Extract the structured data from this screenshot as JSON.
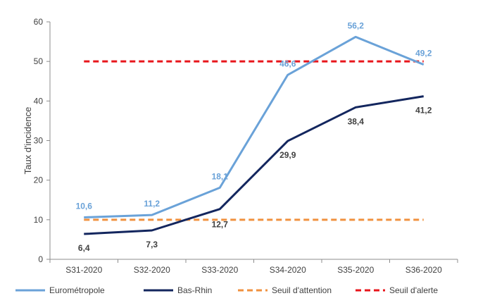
{
  "chart_data": {
    "type": "line",
    "title": "",
    "xlabel": "",
    "ylabel": "Taux d'incidence",
    "ylim": [
      0,
      60
    ],
    "yticks": [
      "0",
      "10",
      "20",
      "30",
      "40",
      "50",
      "60"
    ],
    "categories": [
      "S31-2020",
      "S32-2020",
      "S33-2020",
      "S34-2020",
      "S35-2020",
      "S36-2020"
    ],
    "grid": false,
    "legend_position": "bottom",
    "series": [
      {
        "name": "Eurométropole",
        "color": "#6aa2d8",
        "style": "solid",
        "values": [
          10.6,
          11.2,
          18.1,
          46.6,
          56.2,
          49.2
        ],
        "labels": [
          "10,6",
          "11,2",
          "18,1",
          "46,6",
          "56,2",
          "49,2"
        ]
      },
      {
        "name": "Bas-Rhin",
        "color": "#13265e",
        "style": "solid",
        "values": [
          6.4,
          7.3,
          12.7,
          29.9,
          38.4,
          41.2
        ],
        "labels": [
          "6,4",
          "7,3",
          "12,7",
          "29,9",
          "38,4",
          "41,2"
        ]
      },
      {
        "name": "Seuil d'attention",
        "color": "#f0913f",
        "style": "dashed",
        "values": [
          10,
          10,
          10,
          10,
          10,
          10
        ]
      },
      {
        "name": "Seuil d'alerte",
        "color": "#e8151b",
        "style": "dashed",
        "values": [
          50,
          50,
          50,
          50,
          50,
          50
        ]
      }
    ]
  }
}
